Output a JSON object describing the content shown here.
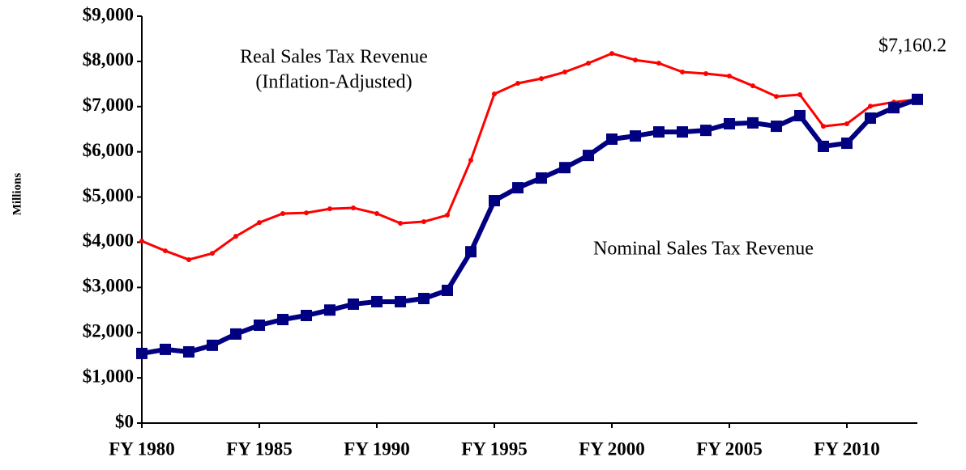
{
  "chart_data": {
    "type": "line",
    "y_label": "Millions",
    "x": [
      1980,
      1981,
      1982,
      1983,
      1984,
      1985,
      1986,
      1987,
      1988,
      1989,
      1990,
      1991,
      1992,
      1993,
      1994,
      1995,
      1996,
      1997,
      1998,
      1999,
      2000,
      2001,
      2002,
      2003,
      2004,
      2005,
      2006,
      2007,
      2008,
      2009,
      2010,
      2011,
      2012,
      2013
    ],
    "series": [
      {
        "color": "#ff0000",
        "marker": "circle",
        "values": [
          4025,
          3810,
          3615,
          3755,
          4130,
          4435,
          4635,
          4650,
          4740,
          4760,
          4635,
          4420,
          4455,
          4600,
          5815,
          7280,
          7515,
          7620,
          7765,
          7960,
          8175,
          8030,
          7960,
          7765,
          7730,
          7675,
          7460,
          7225,
          7265,
          6565,
          6620,
          7010,
          7100,
          7160
        ]
      },
      {
        "color": "#000080",
        "marker": "square",
        "values": [
          1540,
          1630,
          1575,
          1720,
          1970,
          2165,
          2290,
          2380,
          2500,
          2630,
          2685,
          2685,
          2755,
          2935,
          3790,
          4920,
          5205,
          5420,
          5650,
          5920,
          6280,
          6350,
          6440,
          6440,
          6475,
          6620,
          6640,
          6565,
          6800,
          6120,
          6190,
          6745,
          6975,
          7160
        ]
      }
    ],
    "annotations": [
      "Real Sales Tax Revenue",
      "(Inflation-Adjusted)",
      "Nominal Sales Tax Revenue",
      "$7,160.2"
    ],
    "xlim": [
      1980,
      2013
    ],
    "xticks": [
      {
        "value": 1980,
        "label": "FY 1980"
      },
      {
        "value": 1985,
        "label": "FY 1985"
      },
      {
        "value": 1990,
        "label": "FY 1990"
      },
      {
        "value": 1995,
        "label": "FY 1995"
      },
      {
        "value": 2000,
        "label": "FY 2000"
      },
      {
        "value": 2005,
        "label": "FY 2005"
      },
      {
        "value": 2010,
        "label": "FY 2010"
      }
    ],
    "ylim": [
      0,
      9000
    ],
    "yticks": [
      {
        "value": 0,
        "label": "$0"
      },
      {
        "value": 1000,
        "label": "$1,000"
      },
      {
        "value": 2000,
        "label": "$2,000"
      },
      {
        "value": 3000,
        "label": "$3,000"
      },
      {
        "value": 4000,
        "label": "$4,000"
      },
      {
        "value": 5000,
        "label": "$5,000"
      },
      {
        "value": 6000,
        "label": "$6,000"
      },
      {
        "value": 7000,
        "label": "$7,000"
      },
      {
        "value": 8000,
        "label": "$8,000"
      },
      {
        "value": 9000,
        "label": "$9,000"
      }
    ],
    "grid": false
  }
}
